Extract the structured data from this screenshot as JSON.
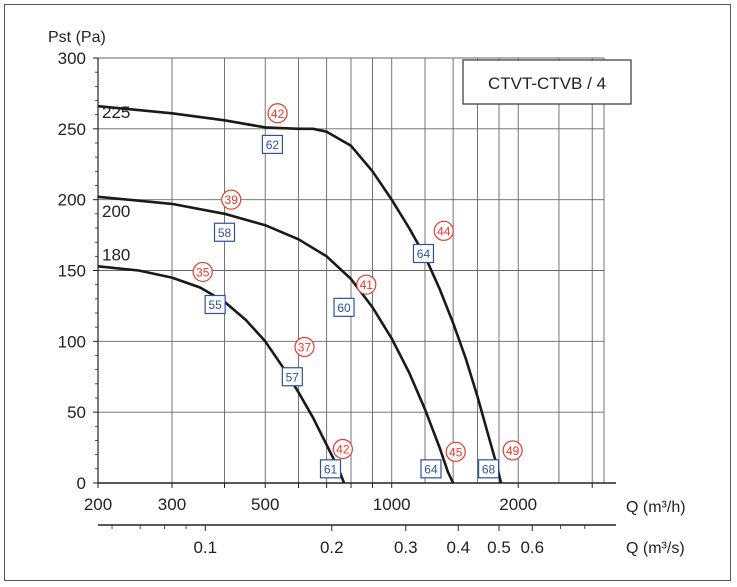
{
  "chart_data": {
    "type": "line",
    "title": "CTVT-CTVB / 4",
    "ylabel": "Pst (Pa)",
    "xlabel": "Q (m³/h)",
    "x2label": "Q (m³/s)",
    "x_scale": "log",
    "xlim": [
      200,
      3200
    ],
    "ylim": [
      0,
      300
    ],
    "grid": true,
    "y_ticks": [
      "0",
      "50",
      "100",
      "150",
      "200",
      "250",
      "300"
    ],
    "x_ticks": [
      "200",
      "300",
      "500",
      "1000",
      "2000"
    ],
    "x2_ticks": [
      "0.1",
      "0.2",
      "0.3",
      "0.4",
      "0.5",
      "0.6"
    ],
    "series": [
      {
        "name": "180",
        "points": [
          [
            200,
            153
          ],
          [
            250,
            150
          ],
          [
            300,
            145
          ],
          [
            350,
            138
          ],
          [
            400,
            128
          ],
          [
            450,
            115
          ],
          [
            500,
            100
          ],
          [
            550,
            82
          ],
          [
            600,
            64
          ],
          [
            650,
            46
          ],
          [
            700,
            27
          ],
          [
            750,
            9
          ],
          [
            770,
            0
          ]
        ]
      },
      {
        "name": "200",
        "points": [
          [
            200,
            202
          ],
          [
            300,
            197
          ],
          [
            400,
            190
          ],
          [
            500,
            182
          ],
          [
            600,
            172
          ],
          [
            700,
            160
          ],
          [
            800,
            144
          ],
          [
            900,
            124
          ],
          [
            1000,
            102
          ],
          [
            1100,
            78
          ],
          [
            1200,
            52
          ],
          [
            1300,
            25
          ],
          [
            1360,
            8
          ],
          [
            1400,
            0
          ]
        ]
      },
      {
        "name": "225",
        "points": [
          [
            200,
            266
          ],
          [
            300,
            261
          ],
          [
            400,
            256
          ],
          [
            500,
            251
          ],
          [
            600,
            250
          ],
          [
            650,
            250
          ],
          [
            700,
            248
          ],
          [
            800,
            238
          ],
          [
            900,
            220
          ],
          [
            1000,
            200
          ],
          [
            1100,
            180
          ],
          [
            1200,
            160
          ],
          [
            1300,
            137
          ],
          [
            1400,
            113
          ],
          [
            1500,
            88
          ],
          [
            1600,
            61
          ],
          [
            1700,
            33
          ],
          [
            1780,
            12
          ],
          [
            1820,
            0
          ]
        ]
      }
    ],
    "annotations": [
      {
        "kind": "circle",
        "label": "42",
        "x": 535,
        "y": 261
      },
      {
        "kind": "square",
        "label": "62",
        "x": 520,
        "y": 239
      },
      {
        "kind": "circle",
        "label": "39",
        "x": 415,
        "y": 200
      },
      {
        "kind": "square",
        "label": "58",
        "x": 400,
        "y": 177
      },
      {
        "kind": "circle",
        "label": "35",
        "x": 355,
        "y": 149
      },
      {
        "kind": "square",
        "label": "55",
        "x": 380,
        "y": 126
      },
      {
        "kind": "circle",
        "label": "37",
        "x": 620,
        "y": 96
      },
      {
        "kind": "square",
        "label": "57",
        "x": 580,
        "y": 75
      },
      {
        "kind": "circle",
        "label": "41",
        "x": 870,
        "y": 140
      },
      {
        "kind": "square",
        "label": "60",
        "x": 770,
        "y": 124
      },
      {
        "kind": "circle",
        "label": "44",
        "x": 1330,
        "y": 178
      },
      {
        "kind": "square",
        "label": "64",
        "x": 1190,
        "y": 162
      },
      {
        "kind": "circle",
        "label": "42",
        "x": 765,
        "y": 24
      },
      {
        "kind": "square",
        "label": "61",
        "x": 715,
        "y": 10
      },
      {
        "kind": "circle",
        "label": "45",
        "x": 1420,
        "y": 22
      },
      {
        "kind": "square",
        "label": "64",
        "x": 1240,
        "y": 10
      },
      {
        "kind": "circle",
        "label": "49",
        "x": 1940,
        "y": 23
      },
      {
        "kind": "square",
        "label": "68",
        "x": 1700,
        "y": 10
      }
    ],
    "colors": {
      "curve": "#1a1a1a",
      "grid": "#666666",
      "circle": "#e8392b",
      "square": "#2f4f9f"
    }
  }
}
